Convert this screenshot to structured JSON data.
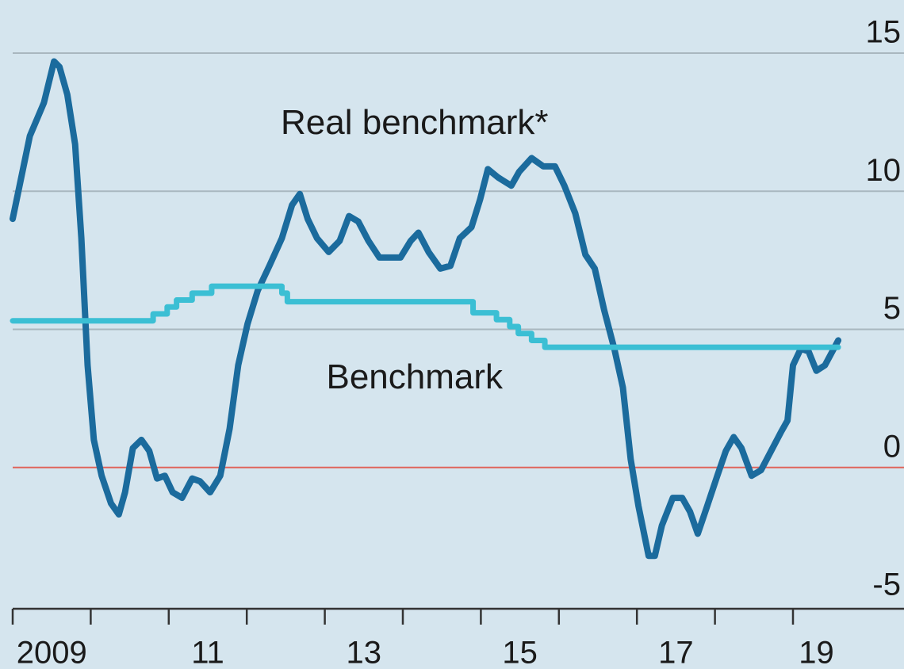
{
  "chart_data": {
    "type": "line",
    "xlim": [
      2009,
      2019.6
    ],
    "xticks": [
      2009,
      2010,
      2011,
      2012,
      2013,
      2014,
      2015,
      2016,
      2017,
      2018,
      2019
    ],
    "x_labels": [
      {
        "value": 2009.5,
        "label": "2009"
      },
      {
        "value": 2011.5,
        "label": "11"
      },
      {
        "value": 2013.5,
        "label": "13"
      },
      {
        "value": 2015.5,
        "label": "15"
      },
      {
        "value": 2017.5,
        "label": "17"
      },
      {
        "value": 2019.3,
        "label": "19"
      }
    ],
    "ylim": [
      -5,
      15
    ],
    "yticks": [
      -5,
      0,
      5,
      10,
      15
    ],
    "grid": true,
    "grid_color": "#a9b7bf",
    "zero_line_color": "#e0645a",
    "series": [
      {
        "name": "Real benchmark*",
        "color": "#1b6b9d",
        "step": false,
        "label_at": [
          2014.15,
          12.4
        ],
        "x": [
          2009.0,
          2009.22,
          2009.4,
          2009.53,
          2009.6,
          2009.7,
          2009.8,
          2009.88,
          2009.96,
          2010.04,
          2010.14,
          2010.26,
          2010.36,
          2010.44,
          2010.54,
          2010.65,
          2010.75,
          2010.85,
          2010.95,
          2011.05,
          2011.17,
          2011.3,
          2011.4,
          2011.53,
          2011.66,
          2011.78,
          2011.89,
          2012.01,
          2012.14,
          2012.29,
          2012.45,
          2012.58,
          2012.68,
          2012.78,
          2012.9,
          2013.05,
          2013.19,
          2013.31,
          2013.43,
          2013.56,
          2013.7,
          2013.82,
          2013.97,
          2014.1,
          2014.2,
          2014.33,
          2014.48,
          2014.61,
          2014.73,
          2014.88,
          2014.99,
          2015.09,
          2015.22,
          2015.39,
          2015.49,
          2015.65,
          2015.8,
          2015.95,
          2016.07,
          2016.21,
          2016.34,
          2016.46,
          2016.58,
          2016.71,
          2016.82,
          2016.92,
          2017.02,
          2017.15,
          2017.23,
          2017.32,
          2017.46,
          2017.58,
          2017.68,
          2017.78,
          2017.9,
          2018.03,
          2018.14,
          2018.24,
          2018.34,
          2018.47,
          2018.59,
          2018.72,
          2018.85,
          2018.93,
          2019.0,
          2019.1,
          2019.2,
          2019.3,
          2019.41,
          2019.58
        ],
        "values": [
          9.0,
          12.0,
          13.2,
          14.7,
          14.5,
          13.5,
          11.7,
          8.3,
          3.7,
          1.0,
          -0.3,
          -1.3,
          -1.7,
          -0.9,
          0.7,
          1.0,
          0.6,
          -0.4,
          -0.3,
          -0.9,
          -1.1,
          -0.4,
          -0.5,
          -0.9,
          -0.3,
          1.4,
          3.7,
          5.2,
          6.4,
          7.3,
          8.3,
          9.5,
          9.9,
          9.0,
          8.3,
          7.8,
          8.2,
          9.1,
          8.9,
          8.2,
          7.6,
          7.6,
          7.6,
          8.2,
          8.5,
          7.8,
          7.2,
          7.3,
          8.3,
          8.7,
          9.7,
          10.8,
          10.5,
          10.2,
          10.7,
          11.2,
          10.9,
          10.9,
          10.2,
          9.2,
          7.7,
          7.2,
          5.7,
          4.3,
          2.9,
          0.3,
          -1.4,
          -3.2,
          -3.2,
          -2.1,
          -1.1,
          -1.1,
          -1.6,
          -2.4,
          -1.4,
          -0.3,
          0.6,
          1.1,
          0.7,
          -0.3,
          -0.1,
          0.6,
          1.3,
          1.7,
          3.7,
          4.3,
          4.2,
          3.5,
          3.7,
          4.6
        ]
      },
      {
        "name": "Benchmark",
        "color": "#3bbfd4",
        "step": true,
        "label_at": [
          2014.15,
          3.2
        ],
        "x": [
          2009.0,
          2010.8,
          2010.98,
          2011.1,
          2011.3,
          2011.55,
          2012.45,
          2012.52,
          2014.9,
          2015.2,
          2015.37,
          2015.48,
          2015.65,
          2015.82,
          2019.58
        ],
        "values": [
          5.31,
          5.56,
          5.81,
          6.06,
          6.31,
          6.56,
          6.31,
          6.0,
          5.6,
          5.35,
          5.1,
          4.85,
          4.6,
          4.35,
          4.35
        ]
      }
    ]
  }
}
